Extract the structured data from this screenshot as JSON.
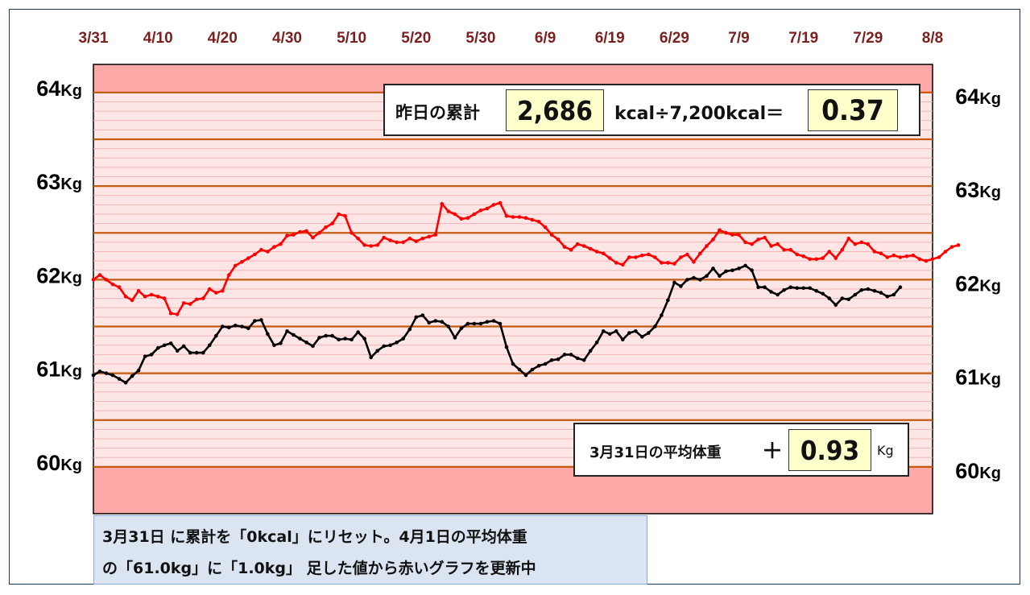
{
  "summary_box": {
    "label": "昨日の累計",
    "kcal_value": "2,686",
    "divide_text": "kcal÷7,200kcal＝",
    "result": "0.37"
  },
  "avg_box": {
    "label": "3月31日の平均体重",
    "plus": "＋",
    "value": "0.93",
    "unit": "Kg"
  },
  "note": {
    "line1": "3月31日 に累計を「0kcal」にリセット。4月1日の平均体重",
    "line2": "の「61.0kg」に「1.0kg」 足した値から赤いグラフを更新中"
  },
  "colors": {
    "plot_bg": "#ffa8a8",
    "band_bg": "#ffe6e6",
    "major_grid": "#c55a11",
    "minor_grid": "#f4b4b4",
    "red_series": "#ff0000",
    "black_series": "#000000"
  },
  "chart_data": {
    "type": "line",
    "x_tick_labels": [
      "3/31",
      "4/10",
      "4/20",
      "4/30",
      "5/10",
      "5/20",
      "5/30",
      "6/9",
      "6/19",
      "6/29",
      "7/9",
      "7/19",
      "7/29",
      "8/8"
    ],
    "x_range_days": [
      0,
      130
    ],
    "y_range": [
      59.5,
      64.3
    ],
    "y_ticks": [
      {
        "num": "64",
        "unit": "Kg",
        "value": 64
      },
      {
        "num": "63",
        "unit": "Kg",
        "value": 63
      },
      {
        "num": "62",
        "unit": "Kg",
        "value": 62
      },
      {
        "num": "61",
        "unit": "Kg",
        "value": 61
      },
      {
        "num": "60",
        "unit": "Kg",
        "value": 60
      }
    ],
    "band_range": [
      60.0,
      64.0
    ],
    "major_grid_step": 0.5,
    "minor_grid_step": 0.1,
    "series": [
      {
        "color": "red",
        "values": [
          62.0,
          62.05,
          62.0,
          61.95,
          61.92,
          61.82,
          61.78,
          61.88,
          61.82,
          61.84,
          61.82,
          61.8,
          61.64,
          61.63,
          61.75,
          61.74,
          61.79,
          61.8,
          61.9,
          61.86,
          61.88,
          62.05,
          62.15,
          62.19,
          62.23,
          62.27,
          62.32,
          62.3,
          62.35,
          62.38,
          62.47,
          62.48,
          62.51,
          62.52,
          62.45,
          62.5,
          62.56,
          62.6,
          62.7,
          62.68,
          62.5,
          62.44,
          62.37,
          62.36,
          62.37,
          62.45,
          62.42,
          62.4,
          62.4,
          62.44,
          62.41,
          62.44,
          62.46,
          62.48,
          62.81,
          62.73,
          62.7,
          62.65,
          62.66,
          62.7,
          62.74,
          62.76,
          62.8,
          62.82,
          62.68,
          62.67,
          62.67,
          62.66,
          62.64,
          62.62,
          62.56,
          62.48,
          62.43,
          62.35,
          62.32,
          62.38,
          62.36,
          62.33,
          62.3,
          62.28,
          62.23,
          62.18,
          62.16,
          62.24,
          62.24,
          62.26,
          62.27,
          62.24,
          62.18,
          62.18,
          62.17,
          62.24,
          62.27,
          62.19,
          62.28,
          62.36,
          62.43,
          62.53,
          62.5,
          62.48,
          62.48,
          62.4,
          62.38,
          62.43,
          62.45,
          62.36,
          62.38,
          62.32,
          62.32,
          62.27,
          62.25,
          62.22,
          62.22,
          62.23,
          62.3,
          62.23,
          62.32,
          62.44,
          62.38,
          62.4,
          62.38,
          62.3,
          62.28,
          62.24,
          62.26,
          62.24,
          62.25,
          62.26,
          62.22,
          62.2,
          62.22,
          62.24,
          62.3,
          62.35,
          62.37
        ]
      },
      {
        "color": "black",
        "values": [
          60.98,
          61.02,
          61.0,
          60.98,
          60.94,
          60.9,
          60.97,
          61.03,
          61.18,
          61.2,
          61.27,
          61.3,
          61.32,
          61.24,
          61.29,
          61.22,
          61.22,
          61.22,
          61.3,
          61.4,
          61.5,
          61.49,
          61.51,
          61.5,
          61.48,
          61.56,
          61.57,
          61.42,
          61.3,
          61.32,
          61.45,
          61.41,
          61.37,
          61.33,
          61.29,
          61.38,
          61.4,
          61.4,
          61.36,
          61.37,
          61.36,
          61.44,
          61.37,
          61.17,
          61.24,
          61.29,
          61.3,
          61.33,
          61.37,
          61.47,
          61.6,
          61.62,
          61.54,
          61.56,
          61.55,
          61.5,
          61.38,
          61.48,
          61.53,
          61.53,
          61.53,
          61.55,
          61.56,
          61.53,
          61.28,
          61.1,
          61.04,
          60.98,
          61.04,
          61.08,
          61.1,
          61.14,
          61.15,
          61.2,
          61.2,
          61.16,
          61.14,
          61.24,
          61.33,
          61.45,
          61.42,
          61.45,
          61.36,
          61.43,
          61.45,
          61.39,
          61.43,
          61.5,
          61.62,
          61.78,
          61.97,
          61.93,
          62.0,
          62.02,
          62.0,
          62.04,
          62.12,
          62.04,
          62.09,
          62.1,
          62.12,
          62.15,
          62.1,
          61.92,
          61.92,
          61.87,
          61.84,
          61.89,
          61.92,
          61.91,
          61.91,
          61.91,
          61.88,
          61.85,
          61.8,
          61.73,
          61.8,
          61.79,
          61.84,
          61.89,
          61.9,
          61.88,
          61.86,
          61.82,
          61.84,
          61.92
        ]
      }
    ]
  }
}
